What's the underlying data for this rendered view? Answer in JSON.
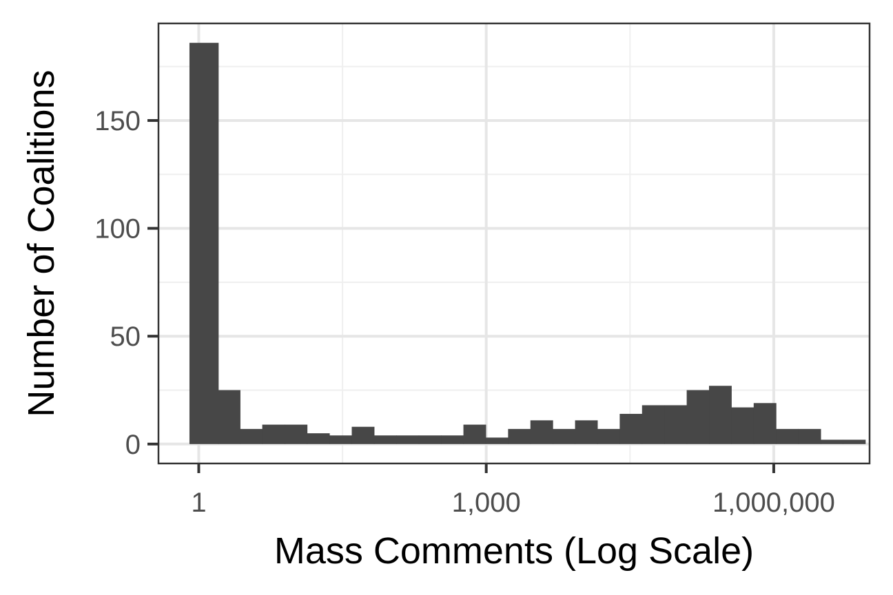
{
  "chart_data": {
    "type": "bar",
    "title": "",
    "xlabel": "Mass Comments (Log Scale)",
    "ylabel": "Number of Coalitions",
    "x_scale": "log10",
    "xlim": [
      0.38,
      10000000
    ],
    "ylim": [
      -9,
      195
    ],
    "grid": true,
    "legend": "none",
    "x_ticks": [
      {
        "value": 1,
        "label": "1"
      },
      {
        "value": 1000,
        "label": "1,000"
      },
      {
        "value": 1000000,
        "label": "1,000,000"
      }
    ],
    "y_ticks": [
      {
        "value": 0,
        "label": "0"
      },
      {
        "value": 50,
        "label": "50"
      },
      {
        "value": 100,
        "label": "100"
      },
      {
        "value": 150,
        "label": "150"
      }
    ],
    "bins": [
      {
        "x0": 0.8,
        "x1": 1.6,
        "count": 186
      },
      {
        "x0": 1.6,
        "x1": 2.7,
        "count": 25
      },
      {
        "x0": 2.7,
        "x1": 4.6,
        "count": 7
      },
      {
        "x0": 4.6,
        "x1": 7.9,
        "count": 9
      },
      {
        "x0": 7.9,
        "x1": 13.5,
        "count": 9
      },
      {
        "x0": 13.5,
        "x1": 23.1,
        "count": 5
      },
      {
        "x0": 23.1,
        "x1": 39.5,
        "count": 4
      },
      {
        "x0": 39.5,
        "x1": 67.6,
        "count": 8
      },
      {
        "x0": 67.6,
        "x1": 115.6,
        "count": 4
      },
      {
        "x0": 115.6,
        "x1": 197.6,
        "count": 4
      },
      {
        "x0": 197.6,
        "x1": 337.9,
        "count": 4
      },
      {
        "x0": 337.9,
        "x1": 577.8,
        "count": 4
      },
      {
        "x0": 577.8,
        "x1": 988,
        "count": 9
      },
      {
        "x0": 988,
        "x1": 1690,
        "count": 3
      },
      {
        "x0": 1690,
        "x1": 2889,
        "count": 7
      },
      {
        "x0": 2889,
        "x1": 4940,
        "count": 11
      },
      {
        "x0": 4940,
        "x1": 8448,
        "count": 7
      },
      {
        "x0": 8448,
        "x1": 14446,
        "count": 11
      },
      {
        "x0": 14446,
        "x1": 24703,
        "count": 7
      },
      {
        "x0": 24703,
        "x1": 42242,
        "count": 14
      },
      {
        "x0": 42242,
        "x1": 72234,
        "count": 18
      },
      {
        "x0": 72234,
        "x1": 123518,
        "count": 18
      },
      {
        "x0": 123518,
        "x1": 211214,
        "count": 25
      },
      {
        "x0": 211214,
        "x1": 361174,
        "count": 27
      },
      {
        "x0": 361174,
        "x1": 617604,
        "count": 17
      },
      {
        "x0": 617604,
        "x1": 1056100,
        "count": 19
      },
      {
        "x0": 1056100,
        "x1": 1806000,
        "count": 7
      },
      {
        "x0": 1806000,
        "x1": 3088000,
        "count": 7
      },
      {
        "x0": 3088000,
        "x1": 5280000,
        "count": 2
      },
      {
        "x0": 5280000,
        "x1": 9029000,
        "count": 2
      }
    ]
  },
  "colors": {
    "bar": "#474747",
    "grid_major": "#e6e6e6",
    "grid_minor": "#efefef",
    "panel_border": "#333333",
    "tick_mark": "#333333"
  }
}
